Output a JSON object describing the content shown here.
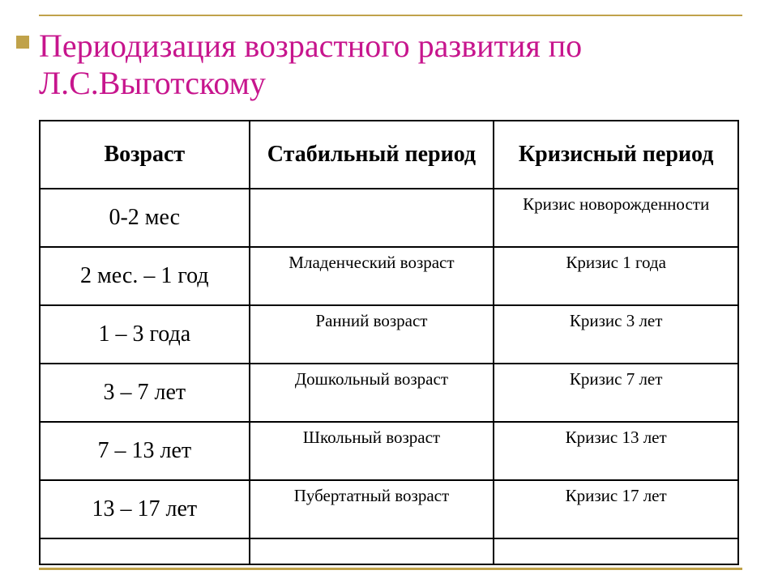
{
  "title": "Периодизация возрастного развития по Л.С.Выготскому",
  "colors": {
    "title": "#c7158d",
    "rule": "#c0a24a",
    "border": "#000000",
    "background": "#ffffff",
    "text": "#000000"
  },
  "typography": {
    "title_fontsize_pt": 30,
    "header_fontsize_pt": 21,
    "age_fontsize_pt": 21,
    "value_fontsize_pt": 16,
    "font_family": "Times New Roman"
  },
  "table": {
    "type": "table",
    "columns": [
      "Возраст",
      "Стабильный период",
      "Кризисный период"
    ],
    "column_widths_pct": [
      30,
      35,
      35
    ],
    "rows": [
      {
        "age": "0-2 мес",
        "stable": "",
        "crisis": "Кризис новорожденности"
      },
      {
        "age": "2 мес. – 1 год",
        "stable": "Младенческий возраст",
        "crisis": "Кризис 1 года"
      },
      {
        "age": "1 – 3 года",
        "stable": "Ранний возраст",
        "crisis": "Кризис 3 лет"
      },
      {
        "age": "3 – 7 лет",
        "stable": "Дошкольный возраст",
        "crisis": "Кризис 7 лет"
      },
      {
        "age": "7 – 13 лет",
        "stable": "Школьный возраст",
        "crisis": "Кризис 13 лет"
      },
      {
        "age": "13 – 17 лет",
        "stable": "Пубертатный возраст",
        "crisis": "Кризис 17 лет"
      }
    ]
  }
}
